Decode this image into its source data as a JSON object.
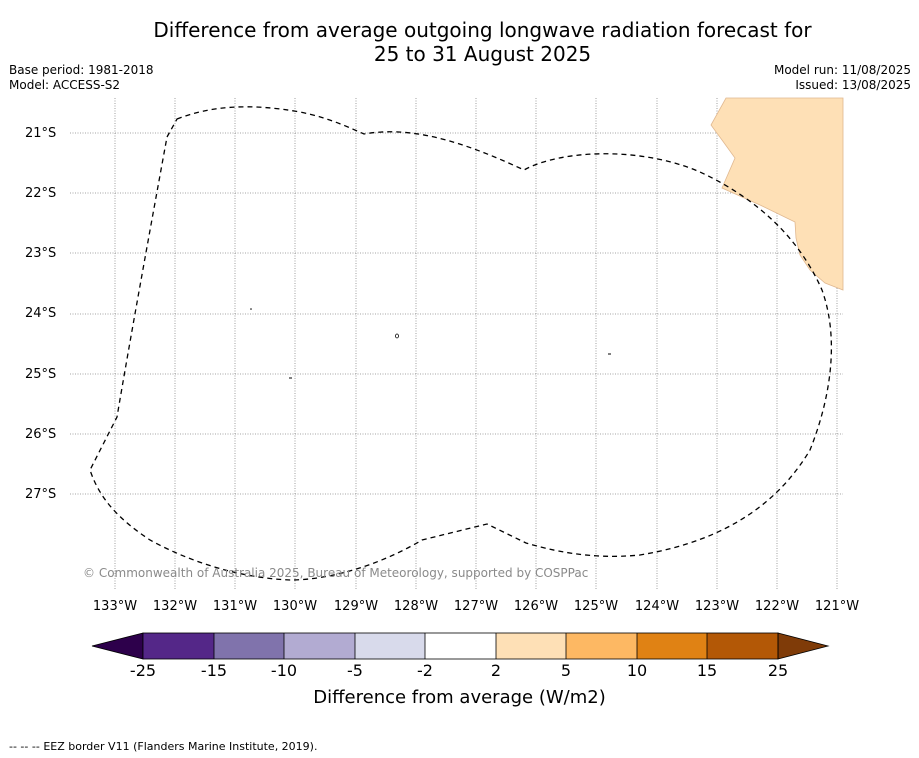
{
  "title_line1": "Difference from average outgoing longwave radiation forecast for",
  "title_line2": "25 to 31 August 2025",
  "base_period": "Base period: 1981-2018",
  "model": "Model: ACCESS-S2",
  "model_run": "Model run: 11/08/2025",
  "issued": "Issued: 13/08/2025",
  "lat_labels": [
    "21°S",
    "22°S",
    "23°S",
    "24°S",
    "25°S",
    "26°S",
    "27°S"
  ],
  "lon_labels": [
    "133°W",
    "132°W",
    "131°W",
    "130°W",
    "129°W",
    "128°W",
    "127°W",
    "126°W",
    "125°W",
    "124°W",
    "123°W",
    "122°W",
    "121°W"
  ],
  "copyright": "© Commonwealth of Australia 2025, Bureau of Meteorology, supported by COSPPac",
  "colorbar": {
    "title": "Difference from average (W/m2)",
    "ticks": [
      "-25",
      "-15",
      "-10",
      "-5",
      "-2",
      "2",
      "5",
      "10",
      "15",
      "25"
    ],
    "colors": {
      "below_min": "#2d004b",
      "-25_-15": "#542788",
      "-15_-10": "#8073ac",
      "-10_-5": "#b2abd2",
      "-5_-2": "#d8daeb",
      "-2_2": "#ffffff",
      "2_5": "#fee0b6",
      "5_10": "#fdb863",
      "10_15": "#e08214",
      "15_25": "#b35806",
      "above_max": "#7f3b08"
    }
  },
  "map_legend": {
    "eez_marker": "--  --  --",
    "eez_text": "EEZ border V11 (Flanders Marine Institute, 2019)."
  }
}
